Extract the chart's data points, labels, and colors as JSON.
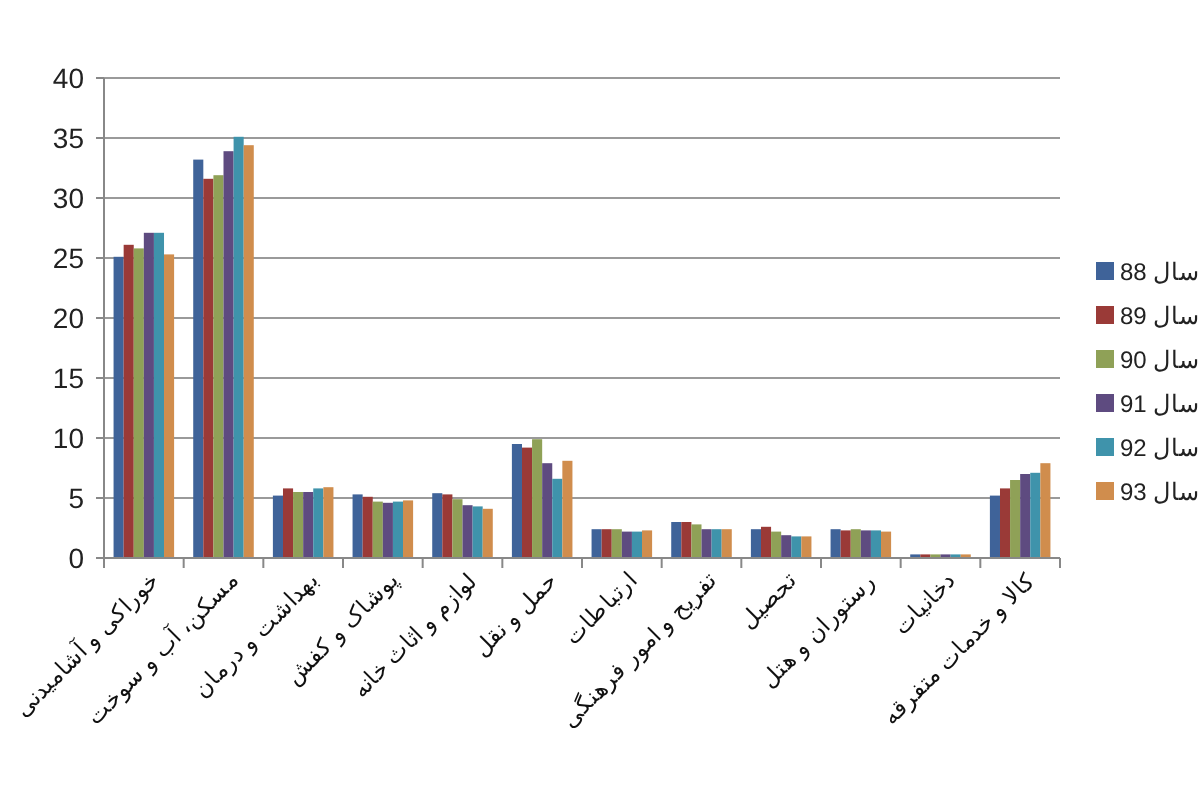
{
  "chart_data": {
    "type": "bar",
    "categories": [
      "خوراکی و آشامیدنی",
      "مسکن، آب و سوخت",
      "بهداشت و درمان",
      "پوشاک و کفش",
      "لوازم و اثاث خانه",
      "حمل و نقل",
      "ارتباطات",
      "تفریح و امور فرهنگی",
      "تحصیل",
      "رستوران و هتل",
      "دخانیات",
      "کالا و خدمات متفرقه"
    ],
    "series": [
      {
        "name": "سال 88",
        "color": "#3f6399",
        "values": [
          25.1,
          33.2,
          5.2,
          5.3,
          5.4,
          9.5,
          2.4,
          3.0,
          2.4,
          2.4,
          0.3,
          5.2
        ]
      },
      {
        "name": "سال 89",
        "color": "#9a3a37",
        "values": [
          26.1,
          31.6,
          5.8,
          5.1,
          5.3,
          9.2,
          2.4,
          3.0,
          2.6,
          2.3,
          0.3,
          5.8
        ]
      },
      {
        "name": "سال 90",
        "color": "#8fa157",
        "values": [
          25.8,
          31.9,
          5.5,
          4.7,
          4.9,
          9.9,
          2.4,
          2.8,
          2.2,
          2.4,
          0.3,
          6.5
        ]
      },
      {
        "name": "سال 91",
        "color": "#5e4b80",
        "values": [
          27.1,
          33.9,
          5.5,
          4.6,
          4.4,
          7.9,
          2.2,
          2.4,
          1.9,
          2.3,
          0.3,
          7.0
        ]
      },
      {
        "name": "سال 92",
        "color": "#3f93ab",
        "values": [
          27.1,
          35.1,
          5.8,
          4.7,
          4.3,
          6.6,
          2.2,
          2.4,
          1.8,
          2.3,
          0.3,
          7.1
        ]
      },
      {
        "name": "سال 93",
        "color": "#d08d4d",
        "values": [
          25.3,
          34.4,
          5.9,
          4.8,
          4.1,
          8.1,
          2.3,
          2.4,
          1.8,
          2.2,
          0.3,
          7.9
        ]
      }
    ],
    "ylim": [
      0,
      40
    ],
    "yticks": [
      0,
      5,
      10,
      15,
      20,
      25,
      30,
      35,
      40
    ],
    "grid": "y",
    "legend": "right"
  }
}
